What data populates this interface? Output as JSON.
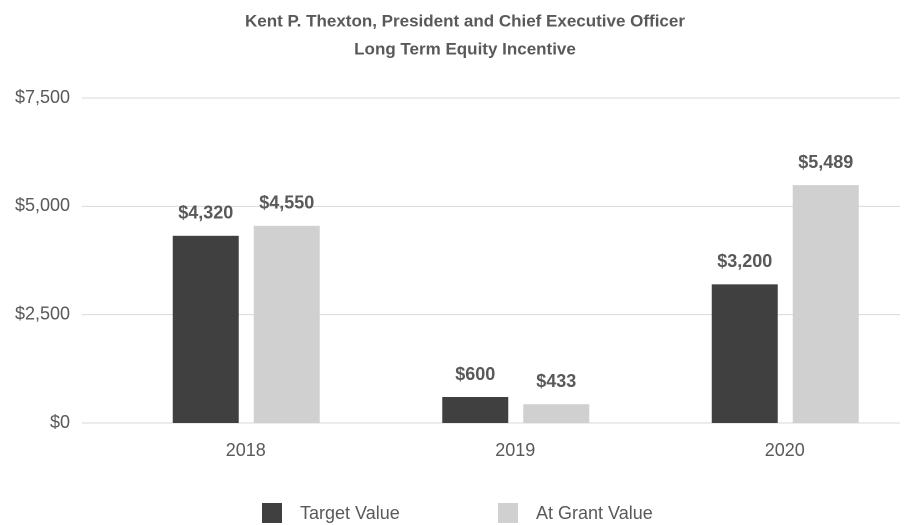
{
  "chart_data": {
    "type": "bar",
    "title": "Kent P. Thexton, President and Chief Executive Officer",
    "subtitle": "Long Term Equity Incentive",
    "categories": [
      "2018",
      "2019",
      "2020"
    ],
    "series": [
      {
        "name": "Target Value",
        "color": "#404040",
        "values": [
          4320,
          600,
          3200
        ],
        "value_labels": [
          "$4,320",
          "$600",
          "$3,200"
        ]
      },
      {
        "name": "At Grant Value",
        "color": "#d0d0d0",
        "values": [
          4550,
          433,
          5489
        ],
        "value_labels": [
          "$4,550",
          "$433",
          "$5,489"
        ]
      }
    ],
    "ylim": [
      0,
      7500
    ],
    "yticks": [
      {
        "value": 0,
        "label": "$0"
      },
      {
        "value": 2500,
        "label": "$2,500"
      },
      {
        "value": 5000,
        "label": "$5,000"
      },
      {
        "value": 7500,
        "label": "$7,500"
      }
    ],
    "grid": true,
    "legend": "bottom"
  }
}
